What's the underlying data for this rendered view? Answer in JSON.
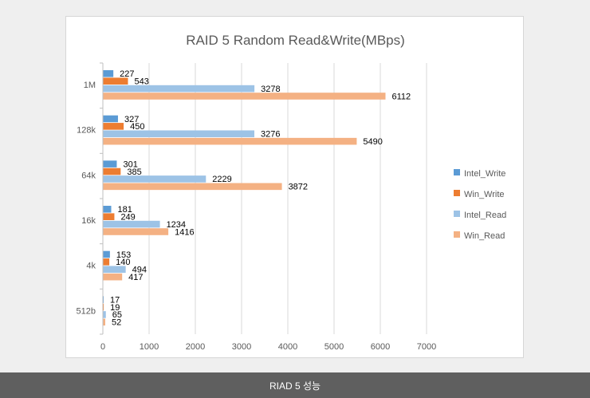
{
  "caption": "RIAD 5 성능",
  "chart_data": {
    "type": "bar",
    "orientation": "horizontal",
    "title": "RAID 5 Random Read&Write(MBps)",
    "xlabel": "",
    "ylabel": "",
    "categories": [
      "1M",
      "128k",
      "64k",
      "16k",
      "4k",
      "512b"
    ],
    "x_ticks": [
      "0",
      "1000",
      "2000",
      "3000",
      "4000",
      "5000",
      "6000",
      "7000"
    ],
    "xlim": [
      0,
      7000
    ],
    "grid": true,
    "legend": "right",
    "series": [
      {
        "name": "Intel_Write",
        "color": "#5b9bd5",
        "values": [
          227,
          327,
          301,
          181,
          153,
          17
        ]
      },
      {
        "name": "Win_Write",
        "color": "#ed7d31",
        "values": [
          543,
          450,
          385,
          249,
          140,
          19
        ]
      },
      {
        "name": "Intel_Read",
        "color": "#9dc3e6",
        "values": [
          3278,
          3276,
          2229,
          1234,
          494,
          65
        ]
      },
      {
        "name": "Win_Read",
        "color": "#f4b183",
        "values": [
          6112,
          5490,
          3872,
          1416,
          417,
          52
        ]
      }
    ]
  }
}
